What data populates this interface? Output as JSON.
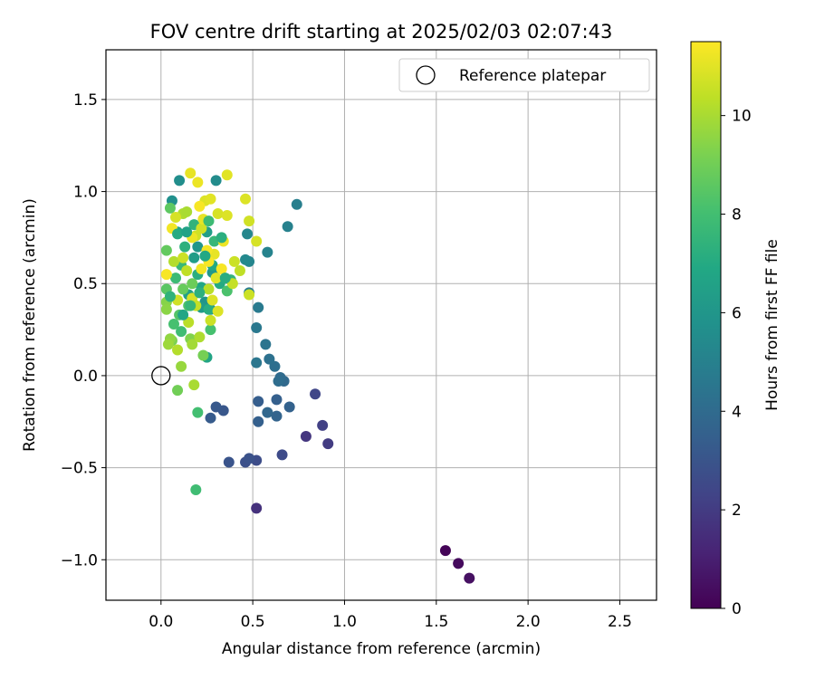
{
  "chart_data": {
    "type": "scatter",
    "title": "FOV centre drift starting at 2025/02/03 02:07:43",
    "xlabel": "Angular distance from reference (arcmin)",
    "ylabel": "Rotation from reference (arcmin)",
    "xlim": [
      -0.3,
      2.7
    ],
    "ylim": [
      -1.22,
      1.77
    ],
    "xticks": [
      0.0,
      0.5,
      1.0,
      1.5,
      2.0,
      2.5
    ],
    "xtick_labels": [
      "0.0",
      "0.5",
      "1.0",
      "1.5",
      "2.0",
      "2.5"
    ],
    "yticks": [
      -1.0,
      -0.5,
      0.0,
      0.5,
      1.0,
      1.5
    ],
    "ytick_labels": [
      "−1.0",
      "−0.5",
      "0.0",
      "0.5",
      "1.0",
      "1.5"
    ],
    "grid": true,
    "legend": {
      "position": "top-right",
      "entries": [
        "Reference platepar"
      ]
    },
    "reference_point": {
      "x": 0.0,
      "y": 0.0
    },
    "colorbar": {
      "label": "Hours from first FF file",
      "colormap": "viridis",
      "range": [
        0,
        11.5
      ],
      "ticks": [
        0,
        2,
        4,
        6,
        8,
        10
      ],
      "tick_labels": [
        "0",
        "2",
        "4",
        "6",
        "8",
        "10"
      ]
    },
    "columns": [
      "x_arcmin",
      "y_arcmin",
      "hours"
    ],
    "points": [
      [
        1.55,
        -0.95,
        0.1
      ],
      [
        1.62,
        -1.02,
        0.3
      ],
      [
        1.68,
        -1.1,
        0.5
      ],
      [
        0.52,
        -0.72,
        1.6
      ],
      [
        0.79,
        -0.33,
        1.8
      ],
      [
        0.91,
        -0.37,
        2.0
      ],
      [
        0.88,
        -0.27,
        2.2
      ],
      [
        0.84,
        -0.1,
        2.4
      ],
      [
        0.66,
        -0.43,
        2.6
      ],
      [
        0.52,
        -0.46,
        2.7
      ],
      [
        0.46,
        -0.47,
        2.8
      ],
      [
        0.48,
        -0.45,
        2.9
      ],
      [
        0.37,
        -0.47,
        3.0
      ],
      [
        0.34,
        -0.19,
        3.1
      ],
      [
        0.3,
        -0.17,
        3.2
      ],
      [
        0.27,
        -0.23,
        3.3
      ],
      [
        0.53,
        -0.14,
        3.4
      ],
      [
        0.53,
        -0.25,
        3.5
      ],
      [
        0.63,
        -0.13,
        3.5
      ],
      [
        0.7,
        -0.17,
        3.6
      ],
      [
        0.63,
        -0.22,
        3.7
      ],
      [
        0.58,
        -0.2,
        3.8
      ],
      [
        0.67,
        -0.03,
        3.9
      ],
      [
        0.65,
        -0.01,
        4.0
      ],
      [
        0.64,
        -0.03,
        4.1
      ],
      [
        0.62,
        0.05,
        4.2
      ],
      [
        0.59,
        0.09,
        4.3
      ],
      [
        0.57,
        0.17,
        4.4
      ],
      [
        0.52,
        0.07,
        4.5
      ],
      [
        0.52,
        0.26,
        4.6
      ],
      [
        0.53,
        0.37,
        4.7
      ],
      [
        0.48,
        0.45,
        4.8
      ],
      [
        0.74,
        0.93,
        4.9
      ],
      [
        0.69,
        0.81,
        5.0
      ],
      [
        0.58,
        0.67,
        5.1
      ],
      [
        0.48,
        0.62,
        5.2
      ],
      [
        0.47,
        0.77,
        5.3
      ],
      [
        0.46,
        0.63,
        5.4
      ],
      [
        0.3,
        1.06,
        5.5
      ],
      [
        0.1,
        1.06,
        5.6
      ],
      [
        0.06,
        0.95,
        5.7
      ],
      [
        0.27,
        0.36,
        5.8
      ],
      [
        0.24,
        0.4,
        5.9
      ],
      [
        0.2,
        0.7,
        6.0
      ],
      [
        0.28,
        0.56,
        6.1
      ],
      [
        0.22,
        0.37,
        6.2
      ],
      [
        0.18,
        0.64,
        6.3
      ],
      [
        0.25,
        0.78,
        6.4
      ],
      [
        0.15,
        0.44,
        6.5
      ],
      [
        0.09,
        0.78,
        6.6
      ],
      [
        0.25,
        0.1,
        6.7
      ],
      [
        0.22,
        0.48,
        6.8
      ],
      [
        0.28,
        0.6,
        6.9
      ],
      [
        0.32,
        0.5,
        7.0
      ],
      [
        0.26,
        0.36,
        7.1
      ],
      [
        0.2,
        0.55,
        7.2
      ],
      [
        0.13,
        0.7,
        7.3
      ],
      [
        0.18,
        0.82,
        7.4
      ],
      [
        0.38,
        0.52,
        7.5
      ],
      [
        0.29,
        0.73,
        7.6
      ],
      [
        0.11,
        0.6,
        7.7
      ],
      [
        0.08,
        0.53,
        7.8
      ],
      [
        0.19,
        -0.62,
        7.9
      ],
      [
        0.2,
        -0.2,
        8.0
      ],
      [
        0.27,
        0.25,
        8.1
      ],
      [
        0.36,
        0.46,
        8.2
      ],
      [
        0.15,
        0.38,
        8.3
      ],
      [
        0.1,
        0.33,
        8.4
      ],
      [
        0.03,
        0.47,
        8.5
      ],
      [
        0.05,
        0.91,
        8.6
      ],
      [
        0.03,
        0.68,
        8.7
      ],
      [
        0.12,
        0.47,
        8.8
      ],
      [
        0.17,
        0.5,
        8.9
      ],
      [
        0.09,
        -0.08,
        9.0
      ],
      [
        0.23,
        0.11,
        9.1
      ],
      [
        0.06,
        0.19,
        9.2
      ],
      [
        0.16,
        0.2,
        9.3
      ],
      [
        0.03,
        0.4,
        9.4
      ],
      [
        0.03,
        0.36,
        9.5
      ],
      [
        0.05,
        0.2,
        9.6
      ],
      [
        0.11,
        0.05,
        9.7
      ],
      [
        0.04,
        0.17,
        9.8
      ],
      [
        0.17,
        0.17,
        9.9
      ],
      [
        0.18,
        -0.05,
        10.0
      ],
      [
        0.21,
        0.21,
        10.1
      ],
      [
        0.09,
        0.14,
        10.2
      ],
      [
        0.26,
        0.47,
        10.3
      ],
      [
        0.43,
        0.57,
        10.4
      ],
      [
        0.39,
        0.5,
        10.5
      ],
      [
        0.48,
        0.44,
        10.6
      ],
      [
        0.48,
        0.84,
        10.7
      ],
      [
        0.52,
        0.73,
        10.8
      ],
      [
        0.46,
        0.96,
        10.9
      ],
      [
        0.36,
        1.09,
        11.0
      ],
      [
        0.16,
        1.1,
        11.1
      ],
      [
        0.2,
        1.05,
        11.2
      ],
      [
        0.06,
        0.8,
        11.3
      ],
      [
        0.03,
        0.55,
        11.4
      ],
      [
        0.07,
        0.62,
        10.2
      ],
      [
        0.14,
        0.57,
        10.4
      ],
      [
        0.12,
        0.64,
        10.6
      ],
      [
        0.17,
        0.42,
        10.8
      ],
      [
        0.19,
        0.38,
        10.5
      ],
      [
        0.22,
        0.8,
        10.7
      ],
      [
        0.24,
        0.95,
        10.9
      ],
      [
        0.27,
        0.96,
        11.0
      ],
      [
        0.31,
        0.88,
        10.8
      ],
      [
        0.34,
        0.73,
        11.2
      ],
      [
        0.29,
        0.66,
        11.1
      ],
      [
        0.26,
        0.62,
        11.4
      ],
      [
        0.22,
        0.58,
        11.3
      ],
      [
        0.33,
        0.58,
        11.4
      ],
      [
        0.4,
        0.62,
        10.6
      ],
      [
        0.36,
        0.87,
        10.9
      ],
      [
        0.15,
        0.29,
        10.3
      ],
      [
        0.27,
        0.3,
        10.6
      ],
      [
        0.12,
        0.88,
        10.1
      ],
      [
        0.08,
        0.86,
        10.8
      ],
      [
        0.19,
        0.76,
        10.7
      ],
      [
        0.23,
        0.85,
        11.1
      ],
      [
        0.28,
        0.41,
        10.9
      ],
      [
        0.17,
        0.75,
        11.2
      ],
      [
        0.25,
        0.68,
        11.3
      ],
      [
        0.3,
        0.53,
        11.0
      ],
      [
        0.21,
        0.92,
        11.4
      ],
      [
        0.09,
        0.41,
        10.7
      ],
      [
        0.14,
        0.89,
        10.0
      ],
      [
        0.31,
        0.35,
        10.9
      ],
      [
        0.09,
        0.77,
        7.0
      ],
      [
        0.12,
        0.33,
        6.8
      ],
      [
        0.33,
        0.75,
        7.2
      ],
      [
        0.14,
        0.78,
        6.6
      ],
      [
        0.24,
        0.65,
        6.9
      ],
      [
        0.16,
        0.38,
        7.6
      ],
      [
        0.07,
        0.28,
        8.1
      ],
      [
        0.05,
        0.43,
        7.4
      ],
      [
        0.21,
        0.45,
        7.3
      ],
      [
        0.26,
        0.84,
        7.8
      ],
      [
        0.11,
        0.24,
        7.9
      ],
      [
        0.35,
        0.53,
        7.1
      ]
    ]
  }
}
